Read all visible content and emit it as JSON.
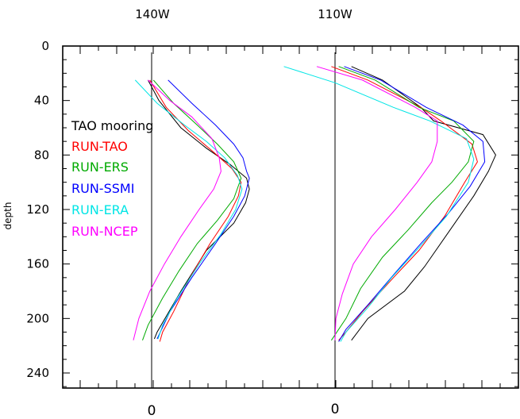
{
  "chart_data": {
    "type": "line",
    "ylabel": "depth",
    "ylim": [
      0,
      250
    ],
    "y_ticks": [
      "0",
      "40",
      "80",
      "120",
      "160",
      "200",
      "240"
    ],
    "y_tick_values": [
      0,
      40,
      80,
      120,
      160,
      200,
      240
    ],
    "y_reversed": true,
    "panel_labels": [
      "140W",
      "110W"
    ],
    "x_zero_label": "0",
    "legend": [
      {
        "name": "TAO mooring",
        "color": "#000000"
      },
      {
        "name": "RUN-TAO",
        "color": "#ff0000"
      },
      {
        "name": "RUN-ERS",
        "color": "#00aa00"
      },
      {
        "name": "RUN-SSMI",
        "color": "#0000ff"
      },
      {
        "name": "RUN-ERA",
        "color": "#00e5e5"
      },
      {
        "name": "RUN-NCEP",
        "color": "#ff00ff"
      }
    ],
    "panels": [
      {
        "label": "140W",
        "series": [
          {
            "name": "TAO mooring",
            "color": "#000000",
            "points": [
              [
                -0.2,
                25
              ],
              [
                0.4,
                40
              ],
              [
                1.6,
                60
              ],
              [
                3.0,
                75
              ],
              [
                4.3,
                87
              ],
              [
                5.2,
                97
              ],
              [
                5.35,
                105
              ],
              [
                5.15,
                115
              ],
              [
                4.5,
                130
              ],
              [
                3.0,
                150
              ],
              [
                1.6,
                180
              ],
              [
                0.3,
                210
              ],
              [
                0.15,
                215
              ]
            ]
          },
          {
            "name": "RUN-TAO",
            "color": "#ff0000",
            "points": [
              [
                -0.1,
                25
              ],
              [
                0.8,
                45
              ],
              [
                2.0,
                62
              ],
              [
                3.4,
                78
              ],
              [
                4.4,
                90
              ],
              [
                4.9,
                100
              ],
              [
                4.75,
                110
              ],
              [
                4.2,
                125
              ],
              [
                3.2,
                145
              ],
              [
                2.1,
                170
              ],
              [
                1.2,
                195
              ],
              [
                0.6,
                210
              ],
              [
                0.45,
                217
              ]
            ]
          },
          {
            "name": "RUN-ERS",
            "color": "#00aa00",
            "points": [
              [
                0.1,
                25
              ],
              [
                1.2,
                42
              ],
              [
                2.5,
                58
              ],
              [
                3.6,
                72
              ],
              [
                4.5,
                85
              ],
              [
                4.9,
                97
              ],
              [
                4.5,
                112
              ],
              [
                3.6,
                128
              ],
              [
                2.5,
                145
              ],
              [
                1.5,
                165
              ],
              [
                0.6,
                185
              ],
              [
                -0.2,
                205
              ],
              [
                -0.5,
                216
              ]
            ]
          },
          {
            "name": "RUN-SSMI",
            "color": "#0000ff",
            "points": [
              [
                0.9,
                25
              ],
              [
                2.2,
                42
              ],
              [
                3.5,
                58
              ],
              [
                4.5,
                72
              ],
              [
                5.0,
                82
              ],
              [
                5.2,
                92
              ],
              [
                5.35,
                97
              ],
              [
                5.1,
                110
              ],
              [
                4.5,
                125
              ],
              [
                3.5,
                145
              ],
              [
                2.2,
                170
              ],
              [
                1.0,
                195
              ],
              [
                0.3,
                215
              ]
            ]
          },
          {
            "name": "RUN-ERA",
            "color": "#00e5e5",
            "points": [
              [
                -0.9,
                25
              ],
              [
                0.3,
                42
              ],
              [
                1.8,
                58
              ],
              [
                3.0,
                70
              ],
              [
                4.0,
                82
              ],
              [
                4.7,
                95
              ],
              [
                4.95,
                105
              ],
              [
                4.6,
                120
              ],
              [
                3.8,
                138
              ],
              [
                2.6,
                160
              ],
              [
                1.4,
                185
              ],
              [
                0.6,
                205
              ],
              [
                0.35,
                215
              ]
            ]
          },
          {
            "name": "RUN-NCEP",
            "color": "#ff00ff",
            "points": [
              [
                -0.2,
                25
              ],
              [
                1.0,
                40
              ],
              [
                2.2,
                52
              ],
              [
                3.3,
                68
              ],
              [
                3.7,
                82
              ],
              [
                3.8,
                92
              ],
              [
                3.4,
                105
              ],
              [
                2.6,
                120
              ],
              [
                1.6,
                140
              ],
              [
                0.7,
                160
              ],
              [
                -0.1,
                180
              ],
              [
                -0.7,
                200
              ],
              [
                -1.0,
                216
              ]
            ]
          }
        ]
      },
      {
        "label": "110W",
        "series": [
          {
            "name": "TAO mooring",
            "color": "#000000",
            "points": [
              [
                0.9,
                15
              ],
              [
                2.6,
                25
              ],
              [
                4.7,
                45
              ],
              [
                5.4,
                55
              ],
              [
                8.1,
                65
              ],
              [
                8.8,
                80
              ],
              [
                8.4,
                92
              ],
              [
                7.6,
                110
              ],
              [
                6.3,
                135
              ],
              [
                4.9,
                162
              ],
              [
                3.8,
                180
              ],
              [
                1.8,
                200
              ],
              [
                0.9,
                216
              ]
            ]
          },
          {
            "name": "RUN-TAO",
            "color": "#ff0000",
            "points": [
              [
                -0.2,
                15
              ],
              [
                1.8,
                25
              ],
              [
                4.7,
                45
              ],
              [
                5.8,
                55
              ],
              [
                7.5,
                72
              ],
              [
                7.8,
                85
              ],
              [
                7.1,
                100
              ],
              [
                6.0,
                125
              ],
              [
                4.6,
                150
              ],
              [
                3.2,
                170
              ],
              [
                1.5,
                195
              ],
              [
                0.6,
                210
              ],
              [
                0.2,
                216
              ]
            ]
          },
          {
            "name": "RUN-ERS",
            "color": "#00aa00",
            "points": [
              [
                0.2,
                15
              ],
              [
                2.2,
                25
              ],
              [
                4.6,
                45
              ],
              [
                6.5,
                55
              ],
              [
                7.6,
                70
              ],
              [
                7.3,
                85
              ],
              [
                6.4,
                100
              ],
              [
                5.3,
                115
              ],
              [
                4.0,
                135
              ],
              [
                2.6,
                155
              ],
              [
                1.4,
                178
              ],
              [
                0.6,
                200
              ],
              [
                -0.2,
                216
              ]
            ]
          },
          {
            "name": "RUN-SSMI",
            "color": "#0000ff",
            "points": [
              [
                0.5,
                15
              ],
              [
                2.5,
                25
              ],
              [
                5.0,
                45
              ],
              [
                7.0,
                58
              ],
              [
                8.1,
                70
              ],
              [
                8.2,
                85
              ],
              [
                7.4,
                103
              ],
              [
                6.2,
                123
              ],
              [
                4.7,
                145
              ],
              [
                3.2,
                168
              ],
              [
                1.8,
                190
              ],
              [
                0.6,
                208
              ],
              [
                0.2,
                217
              ]
            ]
          },
          {
            "name": "RUN-ERA",
            "color": "#00e5e5",
            "points": [
              [
                -2.8,
                15
              ],
              [
                0.0,
                27
              ],
              [
                3.2,
                45
              ],
              [
                5.2,
                55
              ],
              [
                7.2,
                68
              ],
              [
                7.6,
                83
              ],
              [
                7.3,
                100
              ],
              [
                6.1,
                125
              ],
              [
                4.6,
                148
              ],
              [
                3.1,
                170
              ],
              [
                1.8,
                192
              ],
              [
                0.6,
                210
              ],
              [
                0.3,
                217
              ]
            ]
          },
          {
            "name": "RUN-NCEP",
            "color": "#ff00ff",
            "points": [
              [
                -1.0,
                15
              ],
              [
                1.5,
                25
              ],
              [
                4.4,
                45
              ],
              [
                5.6,
                55
              ],
              [
                5.6,
                70
              ],
              [
                5.3,
                85
              ],
              [
                4.5,
                100
              ],
              [
                3.3,
                120
              ],
              [
                2.0,
                140
              ],
              [
                1.0,
                160
              ],
              [
                0.4,
                182
              ],
              [
                0.05,
                200
              ],
              [
                0.0,
                216
              ]
            ]
          }
        ]
      }
    ]
  }
}
